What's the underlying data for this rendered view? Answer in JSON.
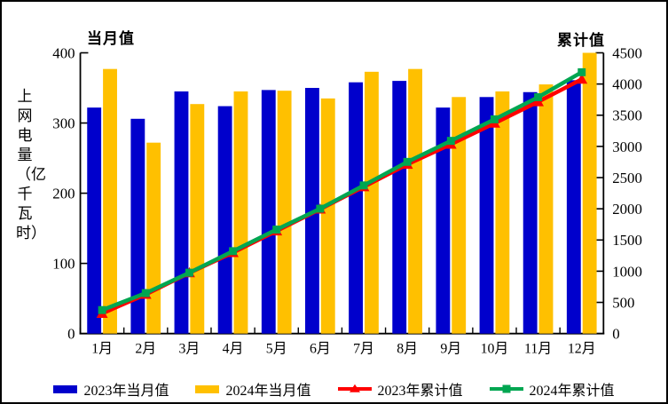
{
  "chart_data": {
    "type": "bar+line",
    "categories": [
      "1月",
      "2月",
      "3月",
      "4月",
      "5月",
      "6月",
      "7月",
      "8月",
      "9月",
      "10月",
      "11月",
      "12月"
    ],
    "y_axis_label": "上网电量（亿千瓦时）",
    "left_axis": {
      "title": "当月值",
      "min": 0,
      "max": 400,
      "ticks": [
        0,
        100,
        200,
        300,
        400
      ]
    },
    "right_axis": {
      "title": "累计值",
      "min": 0,
      "max": 4500,
      "ticks": [
        0,
        500,
        1000,
        1500,
        2000,
        2500,
        3000,
        3500,
        4000,
        4500
      ]
    },
    "legend_position": "bottom",
    "grid": false,
    "series": [
      {
        "name": "2023年当月值",
        "type": "bar",
        "axis": "left",
        "color": "#0000CC",
        "values": [
          322,
          306,
          345,
          324,
          347,
          350,
          358,
          360,
          322,
          337,
          344,
          361
        ]
      },
      {
        "name": "2024年当月值",
        "type": "bar",
        "axis": "left",
        "color": "#FFC000",
        "values": [
          377,
          272,
          327,
          345,
          346,
          335,
          373,
          377,
          337,
          345,
          355,
          400
        ]
      },
      {
        "name": "2023年累计值",
        "type": "line",
        "marker": "triangle",
        "axis": "right",
        "color": "#FF0000",
        "values": [
          322,
          628,
          973,
          1297,
          1644,
          1994,
          2352,
          2712,
          3034,
          3371,
          3715,
          4076
        ]
      },
      {
        "name": "2024年累计值",
        "type": "line",
        "marker": "square",
        "axis": "right",
        "color": "#00A651",
        "values": [
          377,
          649,
          976,
          1321,
          1667,
          2002,
          2375,
          2752,
          3089,
          3434,
          3789,
          4189
        ]
      }
    ]
  }
}
